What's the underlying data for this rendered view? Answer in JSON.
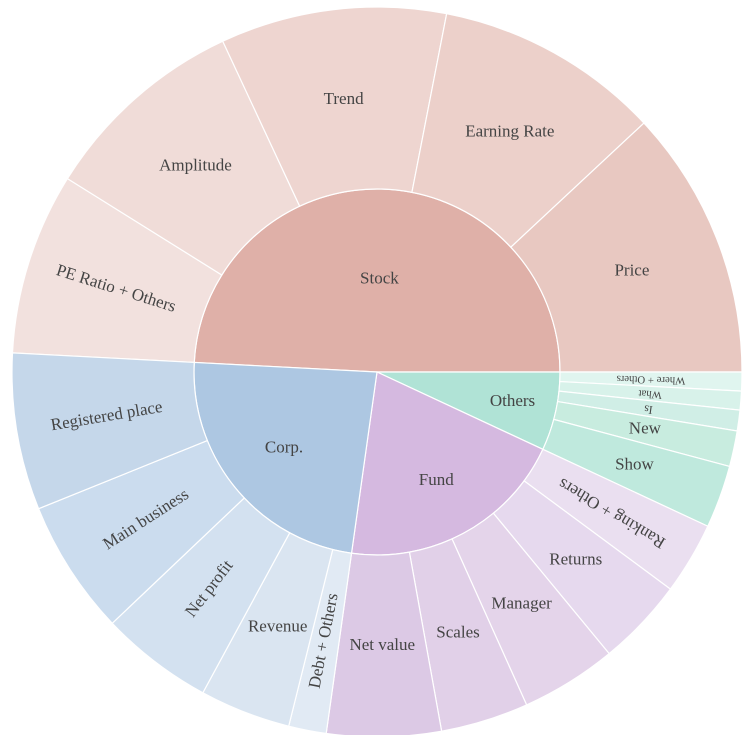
{
  "chart_data": {
    "type": "sunburst",
    "nodes": [
      {
        "name": "Stock",
        "value": 177,
        "color": "#dfb0a8",
        "children": [
          {
            "name": "PE Ratio + Others",
            "value": 29,
            "color": "#f2e1de"
          },
          {
            "name": "Amplitude",
            "value": 33,
            "color": "#f0dcd8"
          },
          {
            "name": "Trend",
            "value": 36,
            "color": "#eed5d0"
          },
          {
            "name": "Earning Rate",
            "value": 36,
            "color": "#ecd0ca"
          },
          {
            "name": "Price",
            "value": 43,
            "color": "#e8c8c1"
          }
        ]
      },
      {
        "name": "Others",
        "value": 25,
        "color": "#b0e3d6",
        "children": [
          {
            "name": "Where + Others",
            "value": 3,
            "color": "#e0f5ef"
          },
          {
            "name": "What",
            "value": 3,
            "color": "#d8f2ea"
          },
          {
            "name": "Is",
            "value": 3.3,
            "color": "#d0eee6"
          },
          {
            "name": "New",
            "value": 5.7,
            "color": "#c8ecdf"
          },
          {
            "name": "Show",
            "value": 10,
            "color": "#bfe9dd"
          }
        ]
      },
      {
        "name": "Fund",
        "value": 73,
        "color": "#d5b9e0",
        "children": [
          {
            "name": "Ranking + Others",
            "value": 11.5,
            "color": "#eadff0"
          },
          {
            "name": "Returns",
            "value": 14,
            "color": "#e6d9ee"
          },
          {
            "name": "Manager",
            "value": 15.3,
            "color": "#e4d4ea"
          },
          {
            "name": "Scales",
            "value": 14,
            "color": "#e1d0e8"
          },
          {
            "name": "Net value",
            "value": 18.2,
            "color": "#dcc9e5"
          }
        ]
      },
      {
        "name": "Corp.",
        "value": 85,
        "color": "#adc7e2",
        "children": [
          {
            "name": "Debt + Others",
            "value": 6,
            "color": "#e1eaf4"
          },
          {
            "name": "Revenue",
            "value": 14.5,
            "color": "#dae5f1"
          },
          {
            "name": "Net profit",
            "value": 18,
            "color": "#d3e1f0"
          },
          {
            "name": "Main business",
            "value": 21.5,
            "color": "#cbdcee"
          },
          {
            "name": "Registered place",
            "value": 25,
            "color": "#c5d7ea"
          }
        ]
      }
    ]
  }
}
